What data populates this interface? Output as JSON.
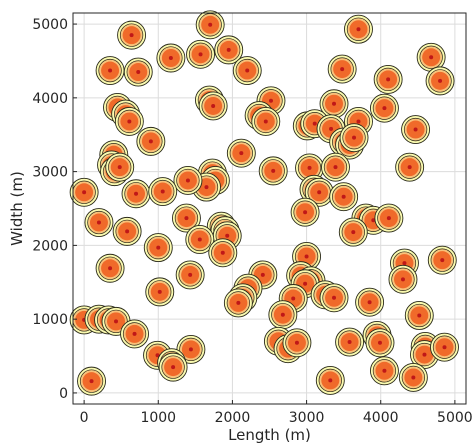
{
  "chart_data": {
    "type": "scatter",
    "xlabel": "Length (m)",
    "ylabel": "Width (m)",
    "xlim": [
      -150,
      5150
    ],
    "ylim": [
      -150,
      5150
    ],
    "xticks": [
      0,
      1000,
      2000,
      3000,
      4000,
      5000
    ],
    "yticks": [
      0,
      1000,
      2000,
      3000,
      4000,
      5000
    ],
    "grid": true,
    "marker_colors": {
      "outer_ring": "#fafab0",
      "middle_ring": "#f7c17a",
      "core": "#f06a2a",
      "center_dot": "#c01818",
      "ring_outline": "#2a2a1a"
    },
    "points": [
      {
        "x": 1700,
        "y": 4990
      },
      {
        "x": 3700,
        "y": 4930
      },
      {
        "x": 640,
        "y": 4850
      },
      {
        "x": 1950,
        "y": 4650
      },
      {
        "x": 4680,
        "y": 4550
      },
      {
        "x": 1170,
        "y": 4540
      },
      {
        "x": 1570,
        "y": 4590
      },
      {
        "x": 350,
        "y": 4370
      },
      {
        "x": 730,
        "y": 4350
      },
      {
        "x": 2200,
        "y": 4370
      },
      {
        "x": 3480,
        "y": 4390
      },
      {
        "x": 4100,
        "y": 4250
      },
      {
        "x": 4800,
        "y": 4230
      },
      {
        "x": 1690,
        "y": 3970
      },
      {
        "x": 1740,
        "y": 3890
      },
      {
        "x": 2520,
        "y": 3960
      },
      {
        "x": 3370,
        "y": 3920
      },
      {
        "x": 4050,
        "y": 3860
      },
      {
        "x": 450,
        "y": 3870
      },
      {
        "x": 560,
        "y": 3780
      },
      {
        "x": 610,
        "y": 3680
      },
      {
        "x": 2360,
        "y": 3760
      },
      {
        "x": 2450,
        "y": 3680
      },
      {
        "x": 3010,
        "y": 3620
      },
      {
        "x": 3110,
        "y": 3650
      },
      {
        "x": 3330,
        "y": 3580
      },
      {
        "x": 3700,
        "y": 3680
      },
      {
        "x": 4470,
        "y": 3570
      },
      {
        "x": 900,
        "y": 3410
      },
      {
        "x": 3500,
        "y": 3400
      },
      {
        "x": 3580,
        "y": 3360
      },
      {
        "x": 3640,
        "y": 3460
      },
      {
        "x": 2120,
        "y": 3250
      },
      {
        "x": 400,
        "y": 3230
      },
      {
        "x": 370,
        "y": 3090
      },
      {
        "x": 410,
        "y": 3000
      },
      {
        "x": 480,
        "y": 3060
      },
      {
        "x": 3040,
        "y": 3050
      },
      {
        "x": 3390,
        "y": 3060
      },
      {
        "x": 4390,
        "y": 3060
      },
      {
        "x": 2550,
        "y": 3010
      },
      {
        "x": 1730,
        "y": 2980
      },
      {
        "x": 1770,
        "y": 2880
      },
      {
        "x": 1650,
        "y": 2790
      },
      {
        "x": 1400,
        "y": 2880
      },
      {
        "x": 0,
        "y": 2720
      },
      {
        "x": 700,
        "y": 2700
      },
      {
        "x": 1060,
        "y": 2730
      },
      {
        "x": 3100,
        "y": 2760
      },
      {
        "x": 3170,
        "y": 2720
      },
      {
        "x": 3500,
        "y": 2660
      },
      {
        "x": 2980,
        "y": 2450
      },
      {
        "x": 3800,
        "y": 2370
      },
      {
        "x": 3900,
        "y": 2340
      },
      {
        "x": 4110,
        "y": 2370
      },
      {
        "x": 200,
        "y": 2310
      },
      {
        "x": 1380,
        "y": 2370
      },
      {
        "x": 1850,
        "y": 2260
      },
      {
        "x": 1900,
        "y": 2200
      },
      {
        "x": 1930,
        "y": 2130
      },
      {
        "x": 1560,
        "y": 2080
      },
      {
        "x": 3630,
        "y": 2180
      },
      {
        "x": 580,
        "y": 2190
      },
      {
        "x": 1000,
        "y": 1970
      },
      {
        "x": 1870,
        "y": 1900
      },
      {
        "x": 3000,
        "y": 1850
      },
      {
        "x": 4320,
        "y": 1760
      },
      {
        "x": 4830,
        "y": 1800
      },
      {
        "x": 350,
        "y": 1690
      },
      {
        "x": 2410,
        "y": 1600
      },
      {
        "x": 1430,
        "y": 1600
      },
      {
        "x": 2920,
        "y": 1590
      },
      {
        "x": 3060,
        "y": 1520
      },
      {
        "x": 2980,
        "y": 1480
      },
      {
        "x": 4300,
        "y": 1540
      },
      {
        "x": 2210,
        "y": 1420
      },
      {
        "x": 1020,
        "y": 1370
      },
      {
        "x": 3250,
        "y": 1330
      },
      {
        "x": 3370,
        "y": 1290
      },
      {
        "x": 2820,
        "y": 1280
      },
      {
        "x": 2140,
        "y": 1290
      },
      {
        "x": 2080,
        "y": 1220
      },
      {
        "x": 3850,
        "y": 1230
      },
      {
        "x": 2680,
        "y": 1060
      },
      {
        "x": 4520,
        "y": 1050
      },
      {
        "x": 0,
        "y": 990
      },
      {
        "x": 200,
        "y": 1000
      },
      {
        "x": 330,
        "y": 990
      },
      {
        "x": 430,
        "y": 970
      },
      {
        "x": 680,
        "y": 800
      },
      {
        "x": 3950,
        "y": 780
      },
      {
        "x": 2620,
        "y": 700
      },
      {
        "x": 2750,
        "y": 600
      },
      {
        "x": 2870,
        "y": 680
      },
      {
        "x": 3580,
        "y": 690
      },
      {
        "x": 3990,
        "y": 680
      },
      {
        "x": 4600,
        "y": 630
      },
      {
        "x": 4590,
        "y": 520
      },
      {
        "x": 4860,
        "y": 620
      },
      {
        "x": 1440,
        "y": 590
      },
      {
        "x": 990,
        "y": 510
      },
      {
        "x": 1180,
        "y": 410
      },
      {
        "x": 1200,
        "y": 350
      },
      {
        "x": 4050,
        "y": 300
      },
      {
        "x": 4440,
        "y": 210
      },
      {
        "x": 100,
        "y": 160
      },
      {
        "x": 3320,
        "y": 170
      }
    ]
  }
}
